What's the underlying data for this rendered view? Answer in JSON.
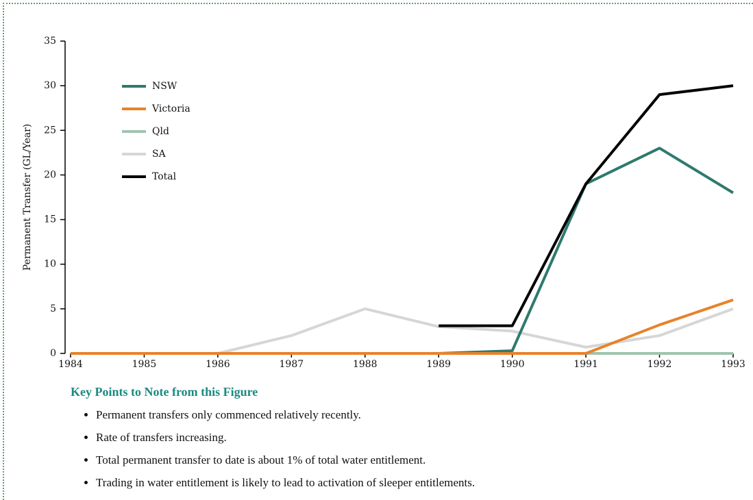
{
  "chart_data": {
    "type": "line",
    "y_label": "Permanent Transfer (GL/Year)",
    "x": [
      1984,
      1985,
      1986,
      1987,
      1988,
      1989,
      1990,
      1991,
      1992,
      1993
    ],
    "xlim": [
      1984,
      1993
    ],
    "xticks": [
      1984,
      1985,
      1986,
      1987,
      1988,
      1989,
      1990,
      1991,
      1992,
      1993
    ],
    "ylim": [
      0,
      35
    ],
    "yticks": [
      0,
      5,
      10,
      15,
      20,
      25,
      30,
      35
    ],
    "legend": "upper-left",
    "series": [
      {
        "name": "NSW",
        "color": "#2e7a6e",
        "values": [
          0,
          0,
          0,
          0,
          0,
          0,
          0.3,
          19,
          23,
          18
        ]
      },
      {
        "name": "Victoria",
        "color": "#e8822a",
        "values": [
          0,
          0,
          0,
          0,
          0,
          0,
          0,
          0,
          3.2,
          6
        ]
      },
      {
        "name": "Qld",
        "color": "#9fc4ae",
        "values": [
          0,
          0,
          0,
          0,
          0,
          0,
          0,
          0,
          0,
          0
        ]
      },
      {
        "name": "SA",
        "color": "#d6d6d6",
        "values": [
          0,
          0,
          0,
          2,
          5,
          3,
          2.5,
          0.7,
          2,
          5
        ]
      },
      {
        "name": "Total",
        "color": "#000000",
        "values": [
          null,
          null,
          null,
          null,
          null,
          3.1,
          3.1,
          19,
          29,
          30
        ]
      }
    ]
  },
  "key_points": {
    "title": "Key Points to Note from this Figure",
    "items": [
      "Permanent transfers only commenced relatively recently.",
      "Rate of transfers increasing.",
      "Total permanent transfer to date is about 1% of total water entitlement.",
      "Trading in water entitlement is likely to lead to activation of sleeper entitlements."
    ]
  }
}
